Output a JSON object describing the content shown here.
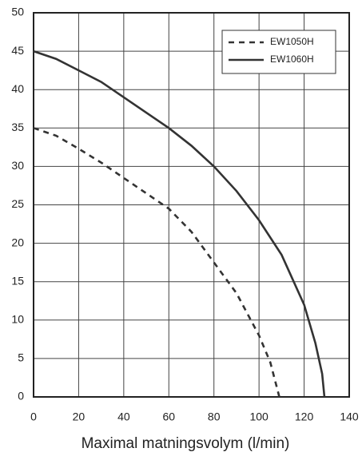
{
  "chart_data": {
    "type": "line",
    "x_label": "Maximal matningsvolym (l/min)",
    "xlim": [
      0,
      140
    ],
    "xticks": [
      0,
      20,
      40,
      60,
      80,
      100,
      120,
      140
    ],
    "ylim": [
      0,
      50
    ],
    "yticks": [
      0,
      5,
      10,
      15,
      20,
      25,
      30,
      35,
      40,
      45,
      50
    ],
    "grid": true,
    "legend": "upper right",
    "series": [
      {
        "name": "EW1050H",
        "color": "#333333",
        "line_style": "dashed",
        "x": [
          0,
          10,
          20,
          30,
          40,
          50,
          60,
          70,
          80,
          90,
          100,
          105,
          109
        ],
        "values": [
          35,
          34,
          32.3,
          30.5,
          28.5,
          26.5,
          24.5,
          21.5,
          17.5,
          13.5,
          8,
          4.5,
          0
        ]
      },
      {
        "name": "EW1060H",
        "color": "#333333",
        "line_style": "solid",
        "x": [
          0,
          10,
          20,
          30,
          40,
          50,
          60,
          70,
          80,
          90,
          100,
          110,
          120,
          125,
          128,
          129
        ],
        "values": [
          45,
          44,
          42.5,
          41,
          39,
          37,
          35,
          32.7,
          30,
          26.8,
          23,
          18.5,
          12,
          7,
          3,
          0
        ]
      }
    ]
  }
}
